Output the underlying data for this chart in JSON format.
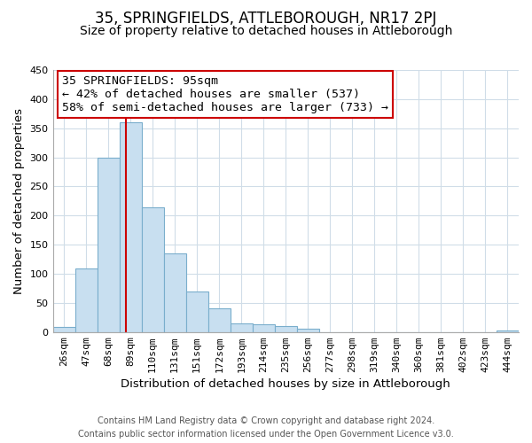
{
  "title": "35, SPRINGFIELDS, ATTLEBOROUGH, NR17 2PJ",
  "subtitle": "Size of property relative to detached houses in Attleborough",
  "xlabel": "Distribution of detached houses by size in Attleborough",
  "ylabel": "Number of detached properties",
  "bar_labels": [
    "26sqm",
    "47sqm",
    "68sqm",
    "89sqm",
    "110sqm",
    "131sqm",
    "151sqm",
    "172sqm",
    "193sqm",
    "214sqm",
    "235sqm",
    "256sqm",
    "277sqm",
    "298sqm",
    "319sqm",
    "340sqm",
    "360sqm",
    "381sqm",
    "402sqm",
    "423sqm",
    "444sqm"
  ],
  "bar_heights": [
    9,
    109,
    300,
    360,
    214,
    135,
    70,
    40,
    15,
    13,
    10,
    5,
    0,
    0,
    0,
    0,
    0,
    0,
    0,
    0,
    3
  ],
  "bar_color": "#c8dff0",
  "bar_edge_color": "#7aaecc",
  "reference_line_color": "#cc0000",
  "ylim": [
    0,
    450
  ],
  "annotation_title": "35 SPRINGFIELDS: 95sqm",
  "annotation_line1": "← 42% of detached houses are smaller (537)",
  "annotation_line2": "58% of semi-detached houses are larger (733) →",
  "annotation_box_color": "#ffffff",
  "annotation_box_edge_color": "#cc0000",
  "footer_line1": "Contains HM Land Registry data © Crown copyright and database right 2024.",
  "footer_line2": "Contains public sector information licensed under the Open Government Licence v3.0.",
  "title_fontsize": 12,
  "subtitle_fontsize": 10,
  "axis_label_fontsize": 9.5,
  "tick_fontsize": 8,
  "annotation_fontsize": 9.5,
  "footer_fontsize": 7,
  "background_color": "#ffffff",
  "grid_color": "#d0dde8"
}
